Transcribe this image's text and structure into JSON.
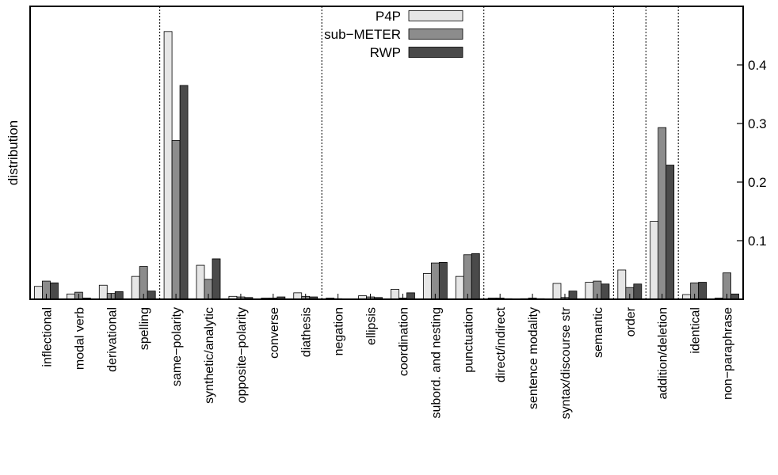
{
  "chart_data": {
    "type": "bar",
    "title": "",
    "xlabel": "",
    "ylabel": "distribution",
    "ylim": [
      0,
      0.5
    ],
    "y_axis_side": "right",
    "yticks": [
      0.1,
      0.2,
      0.3,
      0.4
    ],
    "ytick_labels": [
      "0.1",
      "0.2",
      "0.3",
      "0.4"
    ],
    "legend_position": "top-center",
    "categories": [
      "inflectional",
      "modal verb",
      "derivational",
      "spelling",
      "same−polarity",
      "synthetic/analytic",
      "opposite−polarity",
      "converse",
      "diathesis",
      "negation",
      "ellipsis",
      "coordination",
      "subord. and nesting",
      "punctuation",
      "direct/indirect",
      "sentence modality",
      "syntax/discourse str",
      "semantic",
      "order",
      "addition/deletion",
      "identical",
      "non−paraphrase"
    ],
    "separators_after": [
      "spelling",
      "diathesis",
      "punctuation",
      "semantic",
      "order",
      "addition/deletion"
    ],
    "series": [
      {
        "name": "P4P",
        "color": "#e6e6e6",
        "values": [
          0.022,
          0.009,
          0.024,
          0.039,
          0.457,
          0.058,
          0.005,
          0.002,
          0.011,
          0.002,
          0.006,
          0.017,
          0.044,
          0.039,
          0.002,
          0.001,
          0.027,
          0.029,
          0.05,
          0.133,
          0.008,
          0.002
        ]
      },
      {
        "name": "sub−METER",
        "color": "#8c8c8c",
        "values": [
          0.031,
          0.012,
          0.01,
          0.056,
          0.271,
          0.034,
          0.004,
          0.002,
          0.005,
          0.001,
          0.004,
          0.002,
          0.062,
          0.076,
          0.002,
          0.002,
          0.003,
          0.031,
          0.02,
          0.293,
          0.028,
          0.045
        ]
      },
      {
        "name": "RWP",
        "color": "#4a4a4a",
        "values": [
          0.028,
          0.002,
          0.013,
          0.014,
          0.365,
          0.069,
          0.003,
          0.004,
          0.004,
          0.0,
          0.003,
          0.011,
          0.063,
          0.078,
          0.001,
          0.001,
          0.014,
          0.026,
          0.026,
          0.229,
          0.029,
          0.009
        ]
      }
    ]
  }
}
